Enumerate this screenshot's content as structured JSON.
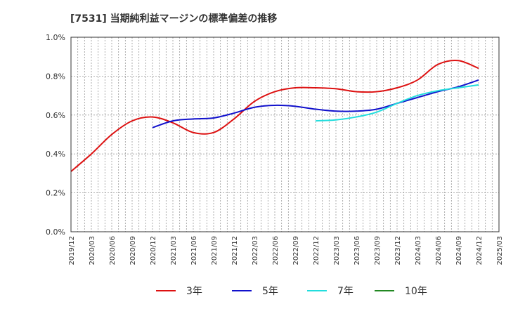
{
  "chart_data": {
    "type": "line",
    "title": "[7531]  当期純利益マージンの標準偏差の推移",
    "xlabel": "",
    "ylabel": "",
    "x_ticks": [
      "2019/12",
      "2020/03",
      "2020/06",
      "2020/09",
      "2020/12",
      "2021/03",
      "2021/06",
      "2021/09",
      "2021/12",
      "2022/03",
      "2022/06",
      "2022/09",
      "2022/12",
      "2023/03",
      "2023/06",
      "2023/09",
      "2023/12",
      "2024/03",
      "2024/06",
      "2024/09",
      "2024/12",
      "2025/03"
    ],
    "y_ticks": [
      "0.0%",
      "0.2%",
      "0.4%",
      "0.6%",
      "0.8%",
      "1.0%"
    ],
    "ylim": [
      0,
      1.0
    ],
    "grid": true,
    "legend_position": "bottom",
    "series": [
      {
        "name": "3年",
        "color": "#dd1111",
        "x": [
          "2019/12",
          "2020/03",
          "2020/06",
          "2020/09",
          "2020/12",
          "2021/03",
          "2021/06",
          "2021/09",
          "2021/12",
          "2022/03",
          "2022/06",
          "2022/09",
          "2022/12",
          "2023/03",
          "2023/06",
          "2023/09",
          "2023/12",
          "2024/03",
          "2024/06",
          "2024/09",
          "2024/12"
        ],
        "values": [
          0.31,
          0.4,
          0.5,
          0.57,
          0.59,
          0.56,
          0.51,
          0.51,
          0.58,
          0.67,
          0.72,
          0.74,
          0.74,
          0.735,
          0.72,
          0.72,
          0.74,
          0.78,
          0.86,
          0.88,
          0.84
        ]
      },
      {
        "name": "5年",
        "color": "#1111cc",
        "x": [
          "2020/12",
          "2021/03",
          "2021/06",
          "2021/09",
          "2021/12",
          "2022/03",
          "2022/06",
          "2022/09",
          "2022/12",
          "2023/03",
          "2023/06",
          "2023/09",
          "2023/12",
          "2024/03",
          "2024/06",
          "2024/09",
          "2024/12"
        ],
        "values": [
          0.535,
          0.57,
          0.58,
          0.585,
          0.61,
          0.64,
          0.65,
          0.645,
          0.63,
          0.62,
          0.62,
          0.63,
          0.66,
          0.69,
          0.72,
          0.745,
          0.78
        ]
      },
      {
        "name": "7年",
        "color": "#22dddd",
        "x": [
          "2022/12",
          "2023/03",
          "2023/06",
          "2023/09",
          "2023/12",
          "2024/03",
          "2024/06",
          "2024/09",
          "2024/12"
        ],
        "values": [
          0.57,
          0.575,
          0.59,
          0.615,
          0.66,
          0.7,
          0.725,
          0.74,
          0.755
        ]
      },
      {
        "name": "10年",
        "color": "#228822",
        "x": [],
        "values": []
      }
    ]
  }
}
